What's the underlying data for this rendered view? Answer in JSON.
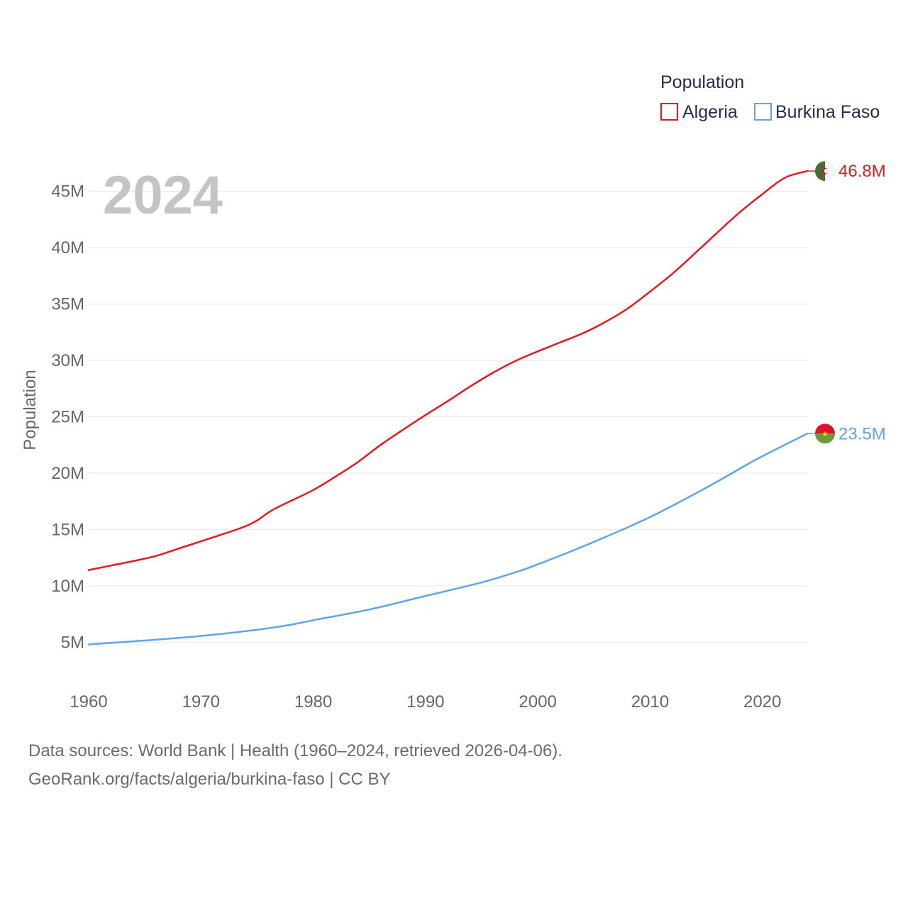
{
  "chart_data": {
    "type": "line",
    "year_label": "2024",
    "ylabel": "Population",
    "ylim": [
      2500000,
      47500000
    ],
    "xlim": [
      1960,
      2024
    ],
    "yticks": [
      {
        "value": 5000000,
        "label": "5M"
      },
      {
        "value": 10000000,
        "label": "10M"
      },
      {
        "value": 15000000,
        "label": "15M"
      },
      {
        "value": 20000000,
        "label": "20M"
      },
      {
        "value": 25000000,
        "label": "25M"
      },
      {
        "value": 30000000,
        "label": "30M"
      },
      {
        "value": 35000000,
        "label": "35M"
      },
      {
        "value": 40000000,
        "label": "40M"
      },
      {
        "value": 45000000,
        "label": "45M"
      }
    ],
    "xticks": [
      {
        "value": 1960,
        "label": "1960"
      },
      {
        "value": 1970,
        "label": "1970"
      },
      {
        "value": 1980,
        "label": "1980"
      },
      {
        "value": 1990,
        "label": "1990"
      },
      {
        "value": 2000,
        "label": "2000"
      },
      {
        "value": 2010,
        "label": "2010"
      },
      {
        "value": 2020,
        "label": "2020"
      }
    ],
    "legend": {
      "title": "Population",
      "position": "top-right"
    },
    "series": [
      {
        "name": "Algeria",
        "color": "#e8191e",
        "end_label": "46.8M",
        "flag": "algeria-flag",
        "points": [
          [
            1960,
            11400000
          ],
          [
            1962,
            11800000
          ],
          [
            1964,
            12200000
          ],
          [
            1966,
            12650000
          ],
          [
            1968,
            13300000
          ],
          [
            1970,
            13950000
          ],
          [
            1972,
            14600000
          ],
          [
            1974,
            15300000
          ],
          [
            1975,
            15800000
          ],
          [
            1976,
            16500000
          ],
          [
            1977,
            17050000
          ],
          [
            1980,
            18500000
          ],
          [
            1982,
            19700000
          ],
          [
            1984,
            21000000
          ],
          [
            1986,
            22500000
          ],
          [
            1988,
            23850000
          ],
          [
            1990,
            25150000
          ],
          [
            1992,
            26400000
          ],
          [
            1994,
            27700000
          ],
          [
            1996,
            28900000
          ],
          [
            1998,
            29950000
          ],
          [
            2000,
            30800000
          ],
          [
            2002,
            31600000
          ],
          [
            2004,
            32400000
          ],
          [
            2006,
            33400000
          ],
          [
            2008,
            34600000
          ],
          [
            2010,
            36100000
          ],
          [
            2012,
            37700000
          ],
          [
            2014,
            39500000
          ],
          [
            2016,
            41350000
          ],
          [
            2018,
            43150000
          ],
          [
            2020,
            44750000
          ],
          [
            2022,
            46200000
          ],
          [
            2024,
            46800000
          ]
        ]
      },
      {
        "name": "Burkina Faso",
        "color": "#5fa5e8",
        "end_label": "23.5M",
        "flag": "burkina-faso-flag",
        "points": [
          [
            1960,
            4800000
          ],
          [
            1965,
            5150000
          ],
          [
            1970,
            5550000
          ],
          [
            1975,
            6100000
          ],
          [
            1978,
            6550000
          ],
          [
            1980,
            6950000
          ],
          [
            1985,
            7900000
          ],
          [
            1990,
            9100000
          ],
          [
            1995,
            10300000
          ],
          [
            1998,
            11200000
          ],
          [
            2000,
            11900000
          ],
          [
            2005,
            13900000
          ],
          [
            2010,
            16100000
          ],
          [
            2015,
            18700000
          ],
          [
            2018,
            20400000
          ],
          [
            2020,
            21500000
          ],
          [
            2024,
            23500000
          ]
        ]
      }
    ]
  },
  "footer": {
    "line1": "Data sources: World Bank | Health (1960–2024, retrieved 2026-04-06).",
    "line2": "GeoRank.org/facts/algeria/burkina-faso | CC BY"
  }
}
